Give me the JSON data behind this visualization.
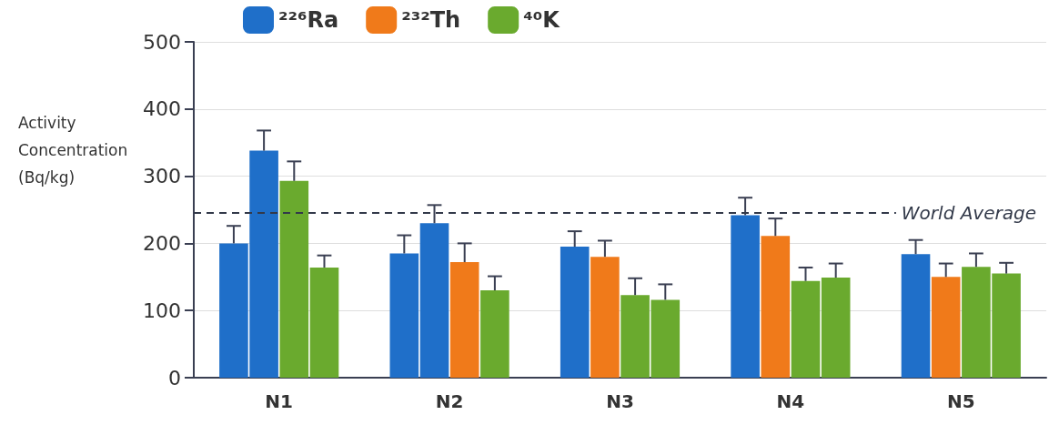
{
  "chart_data": {
    "type": "bar",
    "categories": [
      "N1",
      "N2",
      "N3",
      "N4",
      "N5"
    ],
    "ylabel": "Activity Concentration (Bq/kg)",
    "ylim": [
      0,
      500
    ],
    "yticks": [
      0,
      100,
      200,
      300,
      400,
      500
    ],
    "grid": "y",
    "legend": "top",
    "series": [
      {
        "name": "²²⁶Ra",
        "color": "#1f6fc9",
        "values": [
          200,
          185,
          195,
          242,
          184
        ],
        "errors": [
          [
            200,
            226
          ],
          [
            185,
            212
          ],
          [
            195,
            218
          ],
          [
            242,
            268
          ],
          [
            184,
            205
          ]
        ]
      },
      {
        "name": "²³²Th",
        "color": "#f07a1a",
        "colors": [
          "#1f6fc9",
          "#1f6fc9",
          "#f07a1a",
          "#f07a1a",
          "#f07a1a"
        ],
        "values": [
          338,
          230,
          180,
          211,
          150
        ],
        "errors": [
          [
            338,
            368
          ],
          [
            230,
            257
          ],
          [
            180,
            204
          ],
          [
            211,
            237
          ],
          [
            150,
            170
          ]
        ]
      },
      {
        "color": "#6aaa2e",
        "colors": [
          "#6aaa2e",
          "#f07a1a",
          "#6aaa2e",
          "#6aaa2e",
          "#6aaa2e"
        ],
        "values": [
          293,
          172,
          123,
          144,
          165
        ],
        "errors": [
          [
            293,
            322
          ],
          [
            172,
            200
          ],
          [
            123,
            148
          ],
          [
            144,
            164
          ],
          [
            165,
            185
          ]
        ]
      },
      {
        "name": "⁴⁰K",
        "color": "#6aaa2e",
        "values": [
          164,
          130,
          116,
          149,
          155
        ],
        "errors": [
          [
            164,
            182
          ],
          [
            130,
            151
          ],
          [
            116,
            139
          ],
          [
            149,
            170
          ],
          [
            155,
            171
          ]
        ]
      }
    ],
    "ref_lines": [
      {
        "axis": "y",
        "value": 245,
        "label": "World Average",
        "color": "#333a4a",
        "line_style": "dashed"
      }
    ]
  }
}
